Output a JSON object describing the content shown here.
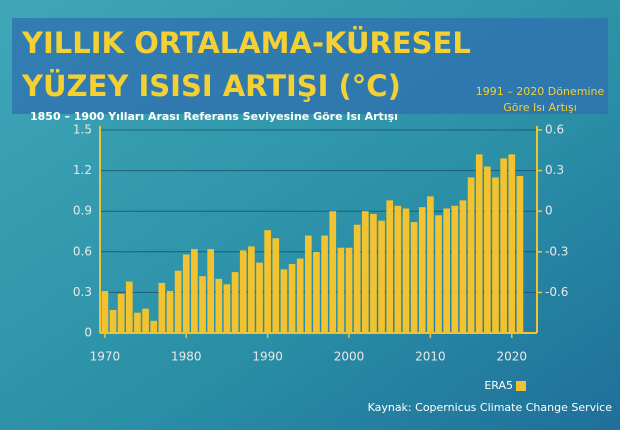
{
  "chart_data": {
    "type": "bar",
    "title": [
      "YILLIK ORTALAMA-KÜRESEL",
      "YÜZEY ISISI ARTIŞI (°C)"
    ],
    "subtitle": "1850 – 1900 Yılları Arası Referans Seviyesine Göre Isı Artışı",
    "y2_label": [
      "1991 – 2020 Dönemine",
      "Göre Isı Artışı"
    ],
    "source": "Kaynak: Copernicus Climate Change Service",
    "x": [
      1970,
      1971,
      1972,
      1973,
      1974,
      1975,
      1976,
      1977,
      1978,
      1979,
      1980,
      1981,
      1982,
      1983,
      1984,
      1985,
      1986,
      1987,
      1988,
      1989,
      1990,
      1991,
      1992,
      1993,
      1994,
      1995,
      1996,
      1997,
      1998,
      1999,
      2000,
      2001,
      2002,
      2003,
      2004,
      2005,
      2006,
      2007,
      2008,
      2009,
      2010,
      2011,
      2012,
      2013,
      2014,
      2015,
      2016,
      2017,
      2018,
      2019,
      2020,
      2021
    ],
    "series": [
      {
        "name": "ERA5",
        "color": "#f2c230",
        "values": [
          0.31,
          0.17,
          0.29,
          0.38,
          0.15,
          0.18,
          0.09,
          0.37,
          0.31,
          0.46,
          0.58,
          0.62,
          0.42,
          0.62,
          0.4,
          0.36,
          0.45,
          0.61,
          0.64,
          0.52,
          0.76,
          0.7,
          0.47,
          0.51,
          0.55,
          0.72,
          0.6,
          0.72,
          0.9,
          0.63,
          0.63,
          0.8,
          0.9,
          0.88,
          0.83,
          0.98,
          0.94,
          0.92,
          0.82,
          0.93,
          1.01,
          0.87,
          0.92,
          0.94,
          0.98,
          1.15,
          1.32,
          1.23,
          1.15,
          1.29,
          1.32,
          1.16
        ]
      }
    ],
    "xlim": [
      1969.4,
      2023.1
    ],
    "xticks": [
      1970,
      1980,
      1990,
      2000,
      2010,
      2020
    ],
    "ylim": [
      0,
      1.5
    ],
    "yticks": [
      0,
      0.3,
      0.6,
      0.9,
      1.2,
      1.5
    ],
    "y2lim": [
      -0.9,
      0.6
    ],
    "y2ticks": [
      -0.6,
      -0.3,
      0,
      0.3,
      0.6
    ],
    "grid": true,
    "legend": "bottom-right"
  }
}
